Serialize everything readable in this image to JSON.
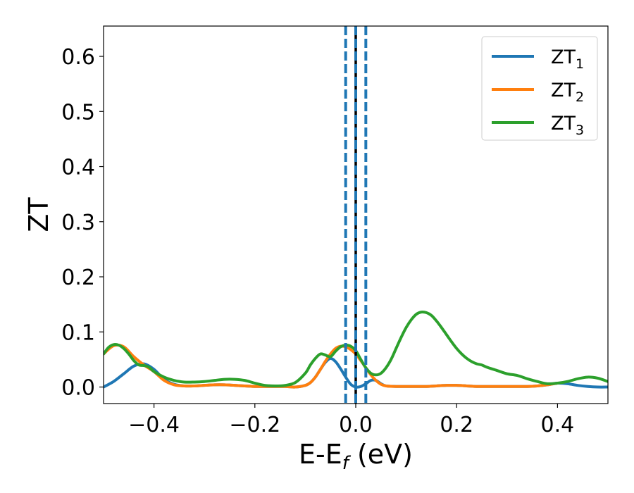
{
  "chart_data": {
    "type": "line",
    "title": "",
    "xlabel": "E-E",
    "xlabel_sub": "f",
    "xlabel_unit": " (eV)",
    "ylabel": "ZT",
    "xlim": [
      -0.5,
      0.5
    ],
    "ylim": [
      -0.03,
      0.655
    ],
    "xticks": [
      -0.4,
      -0.2,
      0.0,
      0.2,
      0.4
    ],
    "xtick_labels": [
      "−0.4",
      "−0.2",
      "0.0",
      "0.2",
      "0.4"
    ],
    "yticks": [
      0.0,
      0.1,
      0.2,
      0.3,
      0.4,
      0.5,
      0.6
    ],
    "ytick_labels": [
      "0.0",
      "0.1",
      "0.2",
      "0.3",
      "0.4",
      "0.5",
      "0.6"
    ],
    "grid": false,
    "legend_position": "top-right",
    "vlines": [
      {
        "x": -0.02,
        "color": "#1f77b4",
        "style": "dashed"
      },
      {
        "x": 0.0,
        "color": "#000000",
        "style": "solid"
      },
      {
        "x": 0.0,
        "color": "#1f77b4",
        "style": "dashed"
      },
      {
        "x": 0.02,
        "color": "#1f77b4",
        "style": "dashed"
      }
    ],
    "series": [
      {
        "name": "ZT",
        "name_sub": "1",
        "color": "#1f77b4",
        "x": [
          -0.5,
          -0.48,
          -0.46,
          -0.44,
          -0.42,
          -0.4,
          -0.38,
          -0.36,
          -0.34,
          -0.32,
          -0.3,
          -0.28,
          -0.26,
          -0.24,
          -0.22,
          -0.2,
          -0.18,
          -0.16,
          -0.14,
          -0.12,
          -0.1,
          -0.09,
          -0.08,
          -0.07,
          -0.06,
          -0.05,
          -0.04,
          -0.03,
          -0.02,
          -0.01,
          0.0,
          0.01,
          0.02,
          0.03,
          0.04,
          0.05,
          0.06,
          0.08,
          0.1,
          0.12,
          0.14,
          0.16,
          0.18,
          0.2,
          0.22,
          0.24,
          0.26,
          0.28,
          0.3,
          0.32,
          0.34,
          0.36,
          0.38,
          0.4,
          0.42,
          0.44,
          0.46,
          0.48,
          0.5
        ],
        "y": [
          0.0,
          0.01,
          0.024,
          0.038,
          0.042,
          0.032,
          0.014,
          0.005,
          0.002,
          0.002,
          0.003,
          0.004,
          0.004,
          0.003,
          0.002,
          0.001,
          0.001,
          0.001,
          0.001,
          0.0,
          0.003,
          0.008,
          0.018,
          0.032,
          0.045,
          0.052,
          0.046,
          0.033,
          0.018,
          0.005,
          0.0,
          0.001,
          0.006,
          0.012,
          0.012,
          0.006,
          0.002,
          0.001,
          0.001,
          0.001,
          0.001,
          0.002,
          0.003,
          0.003,
          0.002,
          0.001,
          0.001,
          0.001,
          0.001,
          0.001,
          0.001,
          0.002,
          0.004,
          0.007,
          0.006,
          0.003,
          0.001,
          0.0,
          0.0
        ]
      },
      {
        "name": "ZT",
        "name_sub": "2",
        "color": "#ff7f0e",
        "x": [
          -0.5,
          -0.48,
          -0.46,
          -0.44,
          -0.42,
          -0.4,
          -0.38,
          -0.36,
          -0.34,
          -0.32,
          -0.3,
          -0.28,
          -0.26,
          -0.24,
          -0.22,
          -0.2,
          -0.18,
          -0.16,
          -0.14,
          -0.12,
          -0.1,
          -0.09,
          -0.08,
          -0.07,
          -0.06,
          -0.05,
          -0.04,
          -0.03,
          -0.02,
          -0.01,
          0.0,
          0.01,
          0.02,
          0.03,
          0.04,
          0.05,
          0.06,
          0.08,
          0.1,
          0.12,
          0.14,
          0.16,
          0.18,
          0.2,
          0.22,
          0.24,
          0.26,
          0.28,
          0.3,
          0.32,
          0.34,
          0.36,
          0.38,
          0.4
        ],
        "y": [
          0.06,
          0.075,
          0.073,
          0.055,
          0.04,
          0.028,
          0.012,
          0.004,
          0.002,
          0.002,
          0.003,
          0.004,
          0.004,
          0.003,
          0.002,
          0.001,
          0.001,
          0.001,
          0.001,
          0.0,
          0.003,
          0.008,
          0.018,
          0.032,
          0.047,
          0.06,
          0.07,
          0.074,
          0.073,
          0.068,
          0.06,
          0.048,
          0.035,
          0.022,
          0.012,
          0.005,
          0.002,
          0.001,
          0.001,
          0.001,
          0.001,
          0.002,
          0.003,
          0.003,
          0.002,
          0.001,
          0.001,
          0.001,
          0.001,
          0.001,
          0.001,
          0.002,
          0.004,
          0.007
        ]
      },
      {
        "name": "ZT",
        "name_sub": "3",
        "color": "#2ca02c",
        "x": [
          -0.5,
          -0.49,
          -0.48,
          -0.47,
          -0.46,
          -0.45,
          -0.44,
          -0.43,
          -0.42,
          -0.41,
          -0.4,
          -0.38,
          -0.36,
          -0.34,
          -0.32,
          -0.3,
          -0.28,
          -0.26,
          -0.24,
          -0.22,
          -0.2,
          -0.18,
          -0.16,
          -0.14,
          -0.12,
          -0.1,
          -0.09,
          -0.08,
          -0.07,
          -0.06,
          -0.05,
          -0.04,
          -0.03,
          -0.02,
          -0.01,
          0.0,
          0.01,
          0.02,
          0.03,
          0.04,
          0.05,
          0.06,
          0.07,
          0.08,
          0.09,
          0.1,
          0.11,
          0.12,
          0.13,
          0.14,
          0.15,
          0.16,
          0.17,
          0.18,
          0.19,
          0.2,
          0.21,
          0.22,
          0.23,
          0.24,
          0.25,
          0.26,
          0.28,
          0.3,
          0.32,
          0.34,
          0.36,
          0.38,
          0.4,
          0.42,
          0.44,
          0.46,
          0.48,
          0.5
        ],
        "y": [
          0.06,
          0.072,
          0.077,
          0.076,
          0.07,
          0.06,
          0.048,
          0.04,
          0.039,
          0.036,
          0.028,
          0.018,
          0.012,
          0.009,
          0.009,
          0.01,
          0.012,
          0.014,
          0.014,
          0.012,
          0.007,
          0.003,
          0.002,
          0.003,
          0.008,
          0.025,
          0.04,
          0.052,
          0.06,
          0.058,
          0.055,
          0.065,
          0.073,
          0.076,
          0.074,
          0.066,
          0.05,
          0.035,
          0.025,
          0.022,
          0.025,
          0.035,
          0.05,
          0.07,
          0.09,
          0.108,
          0.122,
          0.132,
          0.136,
          0.135,
          0.13,
          0.12,
          0.108,
          0.095,
          0.082,
          0.07,
          0.06,
          0.052,
          0.046,
          0.042,
          0.04,
          0.036,
          0.03,
          0.024,
          0.021,
          0.015,
          0.01,
          0.006,
          0.007,
          0.01,
          0.015,
          0.018,
          0.016,
          0.01
        ]
      }
    ]
  }
}
